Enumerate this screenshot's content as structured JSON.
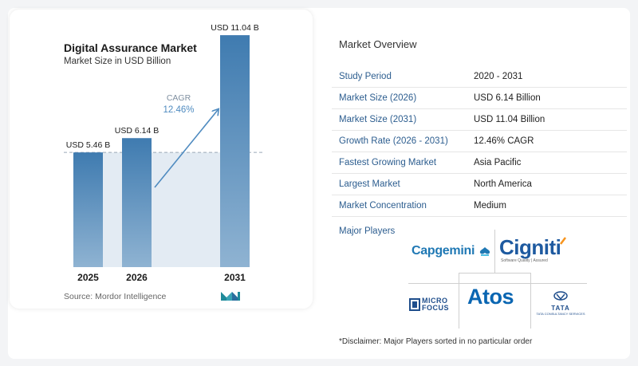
{
  "chart_data": {
    "type": "bar",
    "title": "Digital Assurance Market",
    "subtitle": "Market Size in USD Billion",
    "categories": [
      "2025",
      "2026",
      "2031"
    ],
    "values": [
      5.46,
      6.14,
      11.04
    ],
    "data_labels": [
      "USD 5.46 B",
      "USD 6.14 B",
      "USD 11.04 B"
    ],
    "annotation": {
      "label": "CAGR",
      "value": "12.46%"
    },
    "ylim": [
      0,
      11.5
    ],
    "grid": false,
    "colors": {
      "bar_top": "#3f7bb0",
      "bar_bottom": "#8fb3d2",
      "band": "#e3ebf3",
      "arrow": "#4f8bc0"
    }
  },
  "source": "Source:  Mordor Intelligence",
  "overview": {
    "title": "Market Overview",
    "rows": [
      {
        "label": "Study Period",
        "value": "2020 - 2031"
      },
      {
        "label": "Market Size (2026)",
        "value": "USD 6.14 Billion"
      },
      {
        "label": "Market Size (2031)",
        "value": "USD 11.04 Billion"
      },
      {
        "label": "Growth Rate (2026 - 2031)",
        "value": "12.46% CAGR"
      },
      {
        "label": "Fastest Growing Market",
        "value": "Asia Pacific"
      },
      {
        "label": "Largest Market",
        "value": "North America"
      },
      {
        "label": "Market Concentration",
        "value": "Medium"
      }
    ]
  },
  "players": {
    "title": "Major Players",
    "logos": {
      "capgemini": "Capgemini",
      "cigniti": "Cigniti",
      "cigniti_tagline": "Software Quality | Assured",
      "atos": "Atos",
      "microfocus_1": "MICRO",
      "microfocus_2": "FOCUS",
      "tata": "TATA",
      "tata_sub": "TATA CONSULTANCY SERVICES"
    }
  },
  "disclaimer": "*Disclaimer: Major Players sorted in no particular order"
}
